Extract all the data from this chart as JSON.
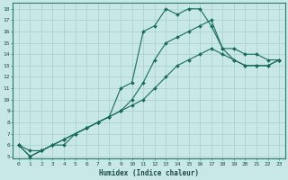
{
  "xlabel": "Humidex (Indice chaleur)",
  "bg_color": "#c8e8e8",
  "line_color": "#1a6b5a",
  "grid_color": "#a8cece",
  "xlim": [
    -0.5,
    23.5
  ],
  "ylim": [
    4.8,
    18.5
  ],
  "xticks": [
    0,
    1,
    2,
    3,
    4,
    5,
    6,
    7,
    8,
    9,
    10,
    11,
    12,
    13,
    14,
    15,
    16,
    17,
    18,
    19,
    20,
    21,
    22,
    23
  ],
  "yticks": [
    5,
    6,
    7,
    8,
    9,
    10,
    11,
    12,
    13,
    14,
    15,
    16,
    17,
    18
  ],
  "line1_x": [
    0,
    1,
    2,
    3,
    4,
    5,
    6,
    7,
    8,
    9,
    10,
    11,
    12,
    13,
    14,
    15,
    16,
    17,
    18,
    19,
    20,
    21,
    22,
    23
  ],
  "line1_y": [
    6,
    5,
    5.5,
    6,
    6,
    7,
    7.5,
    8,
    8.5,
    11,
    11.5,
    16,
    16.5,
    18,
    17.5,
    18,
    18,
    16.5,
    14.5,
    14.5,
    14,
    14,
    13.5,
    13.5
  ],
  "line2_x": [
    0,
    1,
    2,
    3,
    4,
    5,
    6,
    7,
    8,
    9,
    10,
    11,
    12,
    13,
    14,
    15,
    16,
    17,
    18,
    19,
    20,
    21,
    22,
    23
  ],
  "line2_y": [
    6,
    5,
    5.5,
    6,
    6.5,
    7,
    7.5,
    8,
    8.5,
    9,
    10,
    11.5,
    13.5,
    15,
    15.5,
    16,
    16.5,
    17,
    14.5,
    13.5,
    13,
    13,
    13,
    13.5
  ],
  "line3_x": [
    0,
    1,
    2,
    3,
    4,
    5,
    6,
    7,
    8,
    9,
    10,
    11,
    12,
    13,
    14,
    15,
    16,
    17,
    18,
    19,
    20,
    21,
    22,
    23
  ],
  "line3_y": [
    6,
    5.5,
    5.5,
    6,
    6.5,
    7,
    7.5,
    8,
    8.5,
    9,
    9.5,
    10,
    11,
    12,
    13,
    13.5,
    14,
    14.5,
    14,
    13.5,
    13,
    13,
    13,
    13.5
  ],
  "tick_fontsize": 4.5,
  "xlabel_fontsize": 5.5,
  "marker_size": 2.0,
  "line_width": 0.8
}
